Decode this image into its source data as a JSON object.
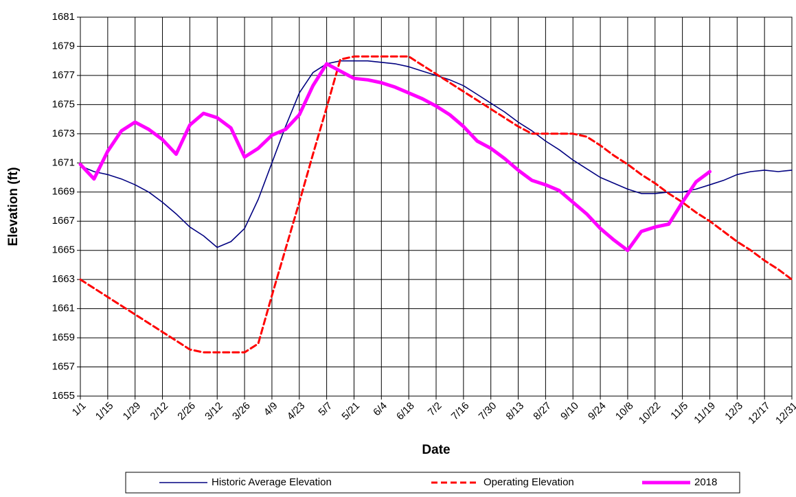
{
  "chart_data": {
    "type": "line",
    "y_label": "Elevation (ft)",
    "x_label": "Date",
    "categories": [
      "1/1",
      null,
      "1/15",
      null,
      "1/29",
      null,
      "2/12",
      null,
      "2/26",
      null,
      "3/12",
      null,
      "3/26",
      null,
      "4/9",
      null,
      "4/23",
      null,
      "5/7",
      null,
      "5/21",
      null,
      "6/4",
      null,
      "6/18",
      null,
      "7/2",
      null,
      "7/16",
      null,
      "7/30",
      null,
      "8/13",
      null,
      "8/27",
      null,
      "9/10",
      null,
      "9/24",
      null,
      "10/8",
      null,
      "10/22",
      null,
      "11/5",
      null,
      "11/19",
      null,
      "12/3",
      null,
      "12/17",
      null,
      "12/31"
    ],
    "series": [
      {
        "name": "Historic Average Elevation",
        "color": "#000080",
        "line_style": "solid",
        "values": [
          1670.8,
          1670.4,
          1670.2,
          1669.9,
          1669.5,
          1669.0,
          1668.3,
          1667.5,
          1666.6,
          1666.0,
          1665.2,
          1665.6,
          1666.5,
          1668.5,
          1671.0,
          1673.5,
          1675.8,
          1677.2,
          1677.8,
          1678.0,
          1678.0,
          1678.0,
          1677.9,
          1677.8,
          1677.6,
          1677.3,
          1677.0,
          1676.7,
          1676.3,
          1675.7,
          1675.1,
          1674.5,
          1673.8,
          1673.2,
          1672.5,
          1671.9,
          1671.2,
          1670.6,
          1670.0,
          1669.6,
          1669.2,
          1668.9,
          1668.9,
          1669.0,
          1669.0,
          1669.2,
          1669.5,
          1669.8,
          1670.2,
          1670.4,
          1670.5,
          1670.4,
          1670.5
        ]
      },
      {
        "name": "Operating Elevation",
        "color": "#ff0000",
        "line_style": "dashed",
        "values": [
          1663.0,
          1662.4,
          1661.8,
          1661.2,
          1660.6,
          1660.0,
          1659.4,
          1658.8,
          1658.2,
          1658.0,
          1658.0,
          1658.0,
          1658.0,
          1658.6,
          1661.9,
          1665.1,
          1668.3,
          1671.6,
          1674.8,
          1678.1,
          1678.3,
          1678.3,
          1678.3,
          1678.3,
          1678.3,
          1677.7,
          1677.1,
          1676.5,
          1675.9,
          1675.3,
          1674.7,
          1674.1,
          1673.5,
          1673.0,
          1673.0,
          1673.0,
          1673.0,
          1672.8,
          1672.2,
          1671.5,
          1670.9,
          1670.2,
          1669.6,
          1668.9,
          1668.3,
          1667.6,
          1667.0,
          1666.3,
          1665.6,
          1665.0,
          1664.3,
          1663.7,
          1663.0
        ]
      },
      {
        "name": "2018",
        "color": "#ff00ff",
        "line_style": "thick",
        "values": [
          1670.9,
          1669.9,
          1671.8,
          1673.2,
          1673.8,
          1673.3,
          1672.6,
          1671.6,
          1673.6,
          1674.4,
          1674.1,
          1673.4,
          1671.4,
          1672.0,
          1672.9,
          1673.3,
          1674.3,
          1676.3,
          1677.8,
          1677.3,
          1676.8,
          1676.7,
          1676.5,
          1676.2,
          1675.8,
          1675.4,
          1674.9,
          1674.3,
          1673.5,
          1672.5,
          1672.0,
          1671.3,
          1670.5,
          1669.8,
          1669.5,
          1669.1,
          1668.3,
          1667.5,
          1666.5,
          1665.7,
          1665.0,
          1666.3,
          1666.6,
          1666.8,
          1668.3,
          1669.7,
          1670.4,
          null,
          null,
          null,
          null,
          null,
          null
        ]
      }
    ],
    "ylim": [
      1655,
      1681
    ],
    "yticks": [
      1655,
      1657,
      1659,
      1661,
      1663,
      1665,
      1667,
      1669,
      1671,
      1673,
      1675,
      1677,
      1679,
      1681
    ],
    "grid": true,
    "legend": "bottom"
  }
}
